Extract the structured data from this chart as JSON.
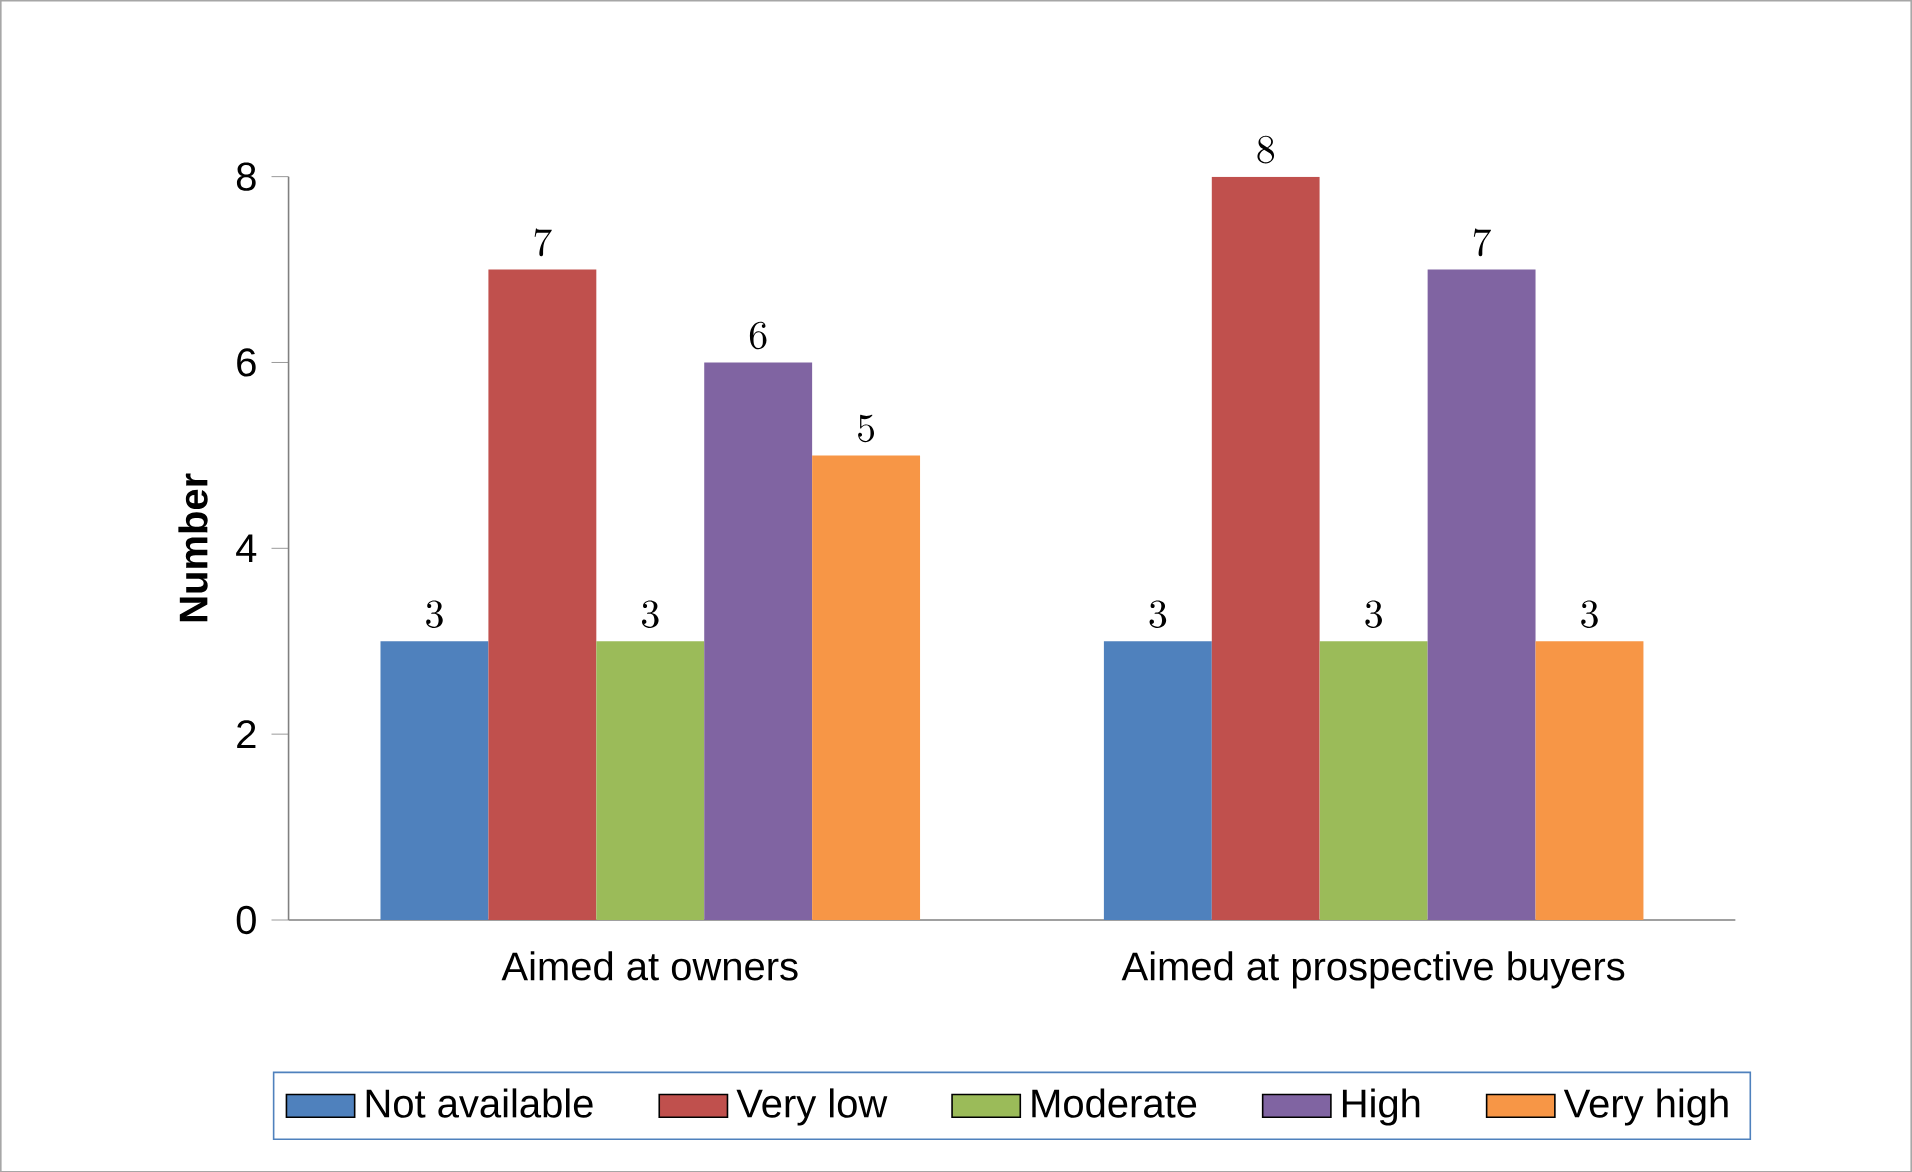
{
  "chart_data": {
    "type": "bar",
    "ylabel": "Number",
    "categories": [
      "Aimed at owners",
      "Aimed at prospective buyers"
    ],
    "series": [
      {
        "name": "Not available",
        "color": "#4f81bd",
        "values": [
          3,
          3
        ]
      },
      {
        "name": "Very low",
        "color": "#c0504d",
        "values": [
          7,
          8
        ]
      },
      {
        "name": "Moderate",
        "color": "#9bbb59",
        "values": [
          3,
          3
        ]
      },
      {
        "name": "High",
        "color": "#8064a2",
        "values": [
          6,
          7
        ]
      },
      {
        "name": "Very high",
        "color": "#f79646",
        "values": [
          5,
          3
        ]
      }
    ],
    "ylim": [
      0,
      8
    ],
    "yticks": [
      0,
      2,
      4,
      6,
      8
    ],
    "data_labels": true,
    "legend": "bottom",
    "grid": false
  }
}
